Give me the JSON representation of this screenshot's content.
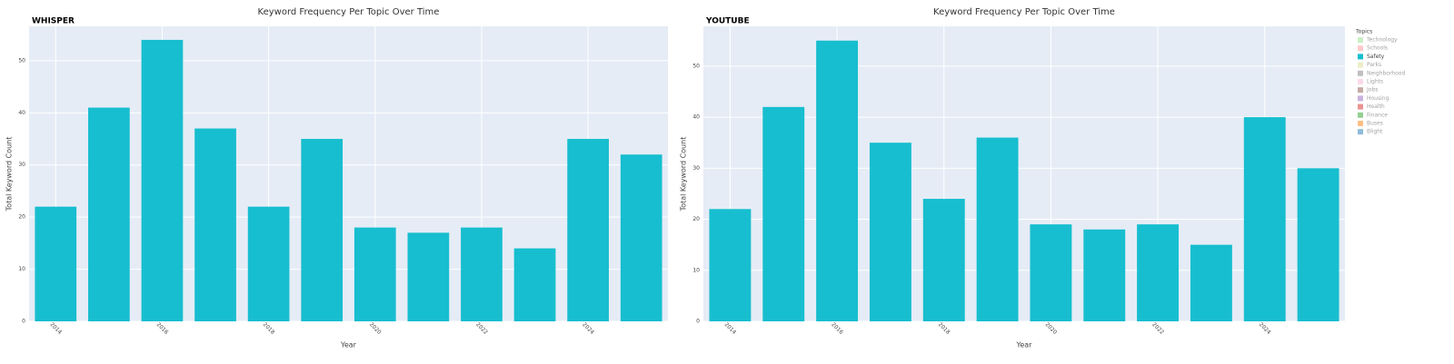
{
  "chart_data": [
    {
      "type": "bar",
      "title": "Keyword Frequency Per Topic Over Time",
      "annotation": "WHISPER",
      "x_label": "Year",
      "y_label": "Total Keyword Count",
      "x": [
        2014,
        2015,
        2016,
        2017,
        2018,
        2019,
        2020,
        2021,
        2022,
        2023,
        2024,
        2025
      ],
      "series": [
        {
          "name": "Safety",
          "color": "#17becf",
          "values": [
            22,
            41,
            54,
            37,
            22,
            35,
            18,
            17,
            18,
            14,
            35,
            32
          ]
        }
      ],
      "xlim": [
        2013.5,
        2025.5
      ],
      "xticks": [
        2014,
        2016,
        2018,
        2020,
        2022,
        2024
      ],
      "ylim": [
        0,
        56.6
      ],
      "yticks": [
        0,
        10,
        20,
        30,
        40,
        50
      ],
      "grid": true
    },
    {
      "type": "bar",
      "title": "Keyword Frequency Per Topic Over Time",
      "annotation": "YOUTUBE",
      "x_label": "Year",
      "y_label": "Total Keyword Count",
      "x": [
        2014,
        2015,
        2016,
        2017,
        2018,
        2019,
        2020,
        2021,
        2022,
        2023,
        2024,
        2025
      ],
      "series": [
        {
          "name": "Safety",
          "color": "#17becf",
          "values": [
            22,
            42,
            55,
            35,
            24,
            36,
            19,
            18,
            19,
            15,
            40,
            30
          ]
        }
      ],
      "xlim": [
        2013.5,
        2025.5
      ],
      "xticks": [
        2014,
        2016,
        2018,
        2020,
        2022,
        2024
      ],
      "ylim": [
        0,
        57.8
      ],
      "yticks": [
        0,
        10,
        20,
        30,
        40,
        50
      ],
      "grid": true,
      "legend": "right",
      "legend_title": "Topics",
      "legend_items": [
        {
          "name": "Technology",
          "color": "#98df8a",
          "visible": false
        },
        {
          "name": "Schools",
          "color": "#ff9896",
          "visible": false
        },
        {
          "name": "Safety",
          "color": "#17becf",
          "visible": true
        },
        {
          "name": "Parks",
          "color": "#dbdb8d",
          "visible": false
        },
        {
          "name": "Neighborhood",
          "color": "#7f7f7f",
          "visible": false
        },
        {
          "name": "Lights",
          "color": "#f7b6d2",
          "visible": false
        },
        {
          "name": "Jobs",
          "color": "#8c564b",
          "visible": false
        },
        {
          "name": "Housing",
          "color": "#9467bd",
          "visible": false
        },
        {
          "name": "Health",
          "color": "#d62728",
          "visible": false
        },
        {
          "name": "Finance",
          "color": "#2ca02c",
          "visible": false
        },
        {
          "name": "Buses",
          "color": "#ff7f0e",
          "visible": false
        },
        {
          "name": "Blight",
          "color": "#1f77b4",
          "visible": false
        }
      ]
    }
  ]
}
